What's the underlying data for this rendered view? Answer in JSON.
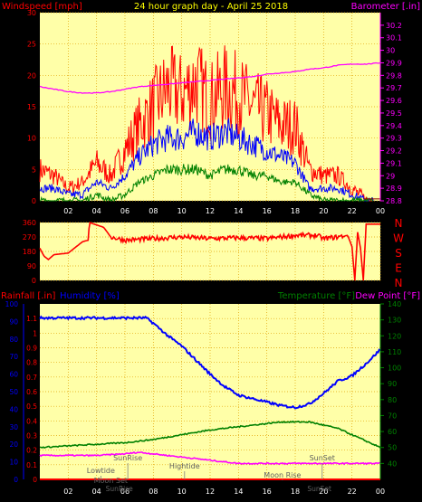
{
  "colors": {
    "panel_bg": "#ffffa8",
    "grid": "#e0a000",
    "windspeed": "#ff0000",
    "gust": "#ff0000",
    "avg": "#0000ff",
    "low": "#008000",
    "barometer": "#ff00ff",
    "title": "#ffff00",
    "direction": "#ff0000",
    "humidity": "#0000ff",
    "temperature": "#008000",
    "dewpoint": "#ff00ff",
    "rain": "#ff0000",
    "hline": "#8b0000"
  },
  "chart_data": [
    {
      "type": "line",
      "title": "24 hour graph day - April 25 2018",
      "ylabel_left": "Windspeed [mph]",
      "ylabel_right": "Barometer [.in]",
      "ylim_left": [
        0,
        30
      ],
      "ylim_right": [
        28.8,
        30.3
      ],
      "xlim": [
        0,
        24
      ],
      "x_ticks": [
        "02",
        "04",
        "06",
        "08",
        "10",
        "12",
        "14",
        "16",
        "18",
        "20",
        "22",
        "00"
      ],
      "left_ticks": [
        "0",
        "5",
        "10",
        "15",
        "20",
        "25",
        "30"
      ],
      "right_ticks": [
        "28.8",
        "28.9",
        "29",
        "29.1",
        "29.2",
        "29.3",
        "29.4",
        "29.5",
        "29.6",
        "29.7",
        "29.8",
        "29.9",
        "30",
        "30.1",
        "30.2"
      ],
      "grid": true,
      "series": [
        {
          "name": "Barometer",
          "axis": "right",
          "x": [
            0,
            1,
            2,
            3,
            4,
            5,
            6,
            7,
            8,
            9,
            10,
            11,
            12,
            13,
            14,
            15,
            16,
            17,
            18,
            19,
            20,
            21,
            22,
            23,
            24
          ],
          "values": [
            29.71,
            29.69,
            29.67,
            29.66,
            29.66,
            29.67,
            29.69,
            29.71,
            29.72,
            29.73,
            29.74,
            29.75,
            29.76,
            29.77,
            29.78,
            29.79,
            29.81,
            29.82,
            29.83,
            29.85,
            29.86,
            29.88,
            29.89,
            29.89,
            29.9
          ]
        },
        {
          "name": "Gust",
          "axis": "left",
          "x": [
            0,
            1,
            2,
            3,
            4,
            5,
            6,
            7,
            8,
            9,
            10,
            11,
            12,
            13,
            14,
            15,
            16,
            17,
            18,
            19,
            20,
            21,
            22,
            23
          ],
          "values": [
            5,
            4,
            2,
            3,
            6,
            4,
            8,
            12,
            15,
            18,
            17,
            19,
            16,
            18,
            17,
            15,
            14,
            12,
            12,
            5,
            4,
            4,
            2,
            0
          ]
        },
        {
          "name": "Average",
          "axis": "left",
          "x": [
            0,
            1,
            2,
            3,
            4,
            5,
            6,
            7,
            8,
            9,
            10,
            11,
            12,
            13,
            14,
            15,
            16,
            17,
            18,
            19,
            20,
            21,
            22,
            23
          ],
          "values": [
            2,
            2,
            1,
            1,
            3,
            2,
            4,
            7,
            9,
            10,
            10,
            11,
            10,
            11,
            10,
            9,
            8,
            7,
            6,
            2,
            2,
            2,
            1,
            0
          ]
        },
        {
          "name": "Low",
          "axis": "left",
          "x": [
            0,
            1,
            2,
            3,
            4,
            5,
            6,
            7,
            8,
            9,
            10,
            11,
            12,
            13,
            14,
            15,
            16,
            17,
            18,
            19,
            20,
            21,
            22,
            23
          ],
          "values": [
            0,
            0,
            0,
            0,
            1,
            0,
            1,
            3,
            4,
            5,
            5,
            5,
            4,
            5,
            5,
            4,
            4,
            3,
            3,
            1,
            0,
            0,
            0,
            0
          ]
        }
      ]
    },
    {
      "type": "line",
      "xlim": [
        0,
        24
      ],
      "ylim": [
        0,
        360
      ],
      "left_ticks": [
        "0",
        "90",
        "180",
        "270",
        "360"
      ],
      "right_labels": [
        "N",
        "W",
        "S",
        "E",
        "N"
      ],
      "grid": true,
      "series": [
        {
          "name": "Wind Direction",
          "x": [
            0,
            0.3,
            0.6,
            1,
            2,
            3,
            3.4,
            3.5,
            4.5,
            5,
            6,
            8,
            10,
            12,
            14,
            16,
            18,
            19.5,
            20,
            21,
            21.7,
            22,
            22.2,
            22.4,
            22.6,
            22.8,
            23,
            24
          ],
          "values": [
            200,
            150,
            130,
            160,
            170,
            240,
            250,
            360,
            330,
            270,
            250,
            260,
            270,
            260,
            265,
            260,
            280,
            280,
            260,
            270,
            280,
            210,
            0,
            300,
            200,
            0,
            350,
            350
          ]
        }
      ]
    },
    {
      "type": "line",
      "ylabel_left_1": "Rainfall [.in]",
      "ylabel_left_2": "Humidity [%]",
      "ylabel_right_1": "Temperature [°F]",
      "ylabel_right_2": "Dew Point [°F]",
      "xlim": [
        0,
        24
      ],
      "ylim_rain": [
        0,
        1.2
      ],
      "ylim_humidity": [
        0,
        100
      ],
      "ylim_temp": [
        30,
        140
      ],
      "rain_ticks": [
        "0",
        "0.1",
        "0.2",
        "0.3",
        "0.4",
        "0.5",
        "0.6",
        "0.7",
        "0.8",
        "0.9",
        "1",
        "1.1"
      ],
      "humidity_ticks": [
        "0",
        "10",
        "20",
        "30",
        "40",
        "50",
        "60",
        "70",
        "80",
        "90",
        "100"
      ],
      "temp_ticks": [
        "40",
        "50",
        "60",
        "70",
        "80",
        "90",
        "100",
        "110",
        "120",
        "130",
        "140"
      ],
      "grid": true,
      "annotations": {
        "lowtide": "Lowtide",
        "sunrise_top": "SunRise",
        "moonset": "Moon Set",
        "sunrise_bottom": "SunRise",
        "hightide": "Hightide",
        "moonrise": "Moon Rise",
        "sunset_top": "SunSet",
        "sunset_bottom": "SunSet"
      },
      "series": [
        {
          "name": "Humidity",
          "x": [
            0,
            2,
            4,
            6,
            7,
            7.5,
            8,
            9,
            10,
            11,
            12,
            13,
            14,
            15,
            16,
            17,
            18,
            19,
            20,
            21,
            22,
            23,
            24
          ],
          "values": [
            92,
            92,
            92,
            92,
            92,
            92,
            89,
            82,
            76,
            68,
            60,
            53,
            48,
            46,
            44,
            42,
            41,
            43,
            49,
            56,
            59,
            66,
            74
          ]
        },
        {
          "name": "Temperature",
          "x": [
            0,
            2,
            4,
            6,
            8,
            10,
            12,
            14,
            16,
            17,
            18,
            19,
            20,
            21,
            22,
            23,
            24
          ],
          "values": [
            50,
            51,
            52,
            53,
            55,
            58,
            61,
            63,
            65,
            66,
            66,
            66,
            64,
            62,
            58,
            54,
            50
          ]
        },
        {
          "name": "Dew Point",
          "x": [
            0,
            2,
            4,
            6,
            7,
            8,
            9,
            10,
            11,
            12,
            13,
            14,
            16,
            18,
            20,
            22,
            24
          ],
          "values": [
            45,
            45,
            45,
            46,
            47,
            46,
            45,
            44,
            43,
            42,
            41,
            40,
            40,
            40,
            40,
            40,
            40
          ]
        },
        {
          "name": "Rainfall",
          "x": [
            0,
            24
          ],
          "values": [
            0,
            0
          ]
        }
      ]
    }
  ]
}
